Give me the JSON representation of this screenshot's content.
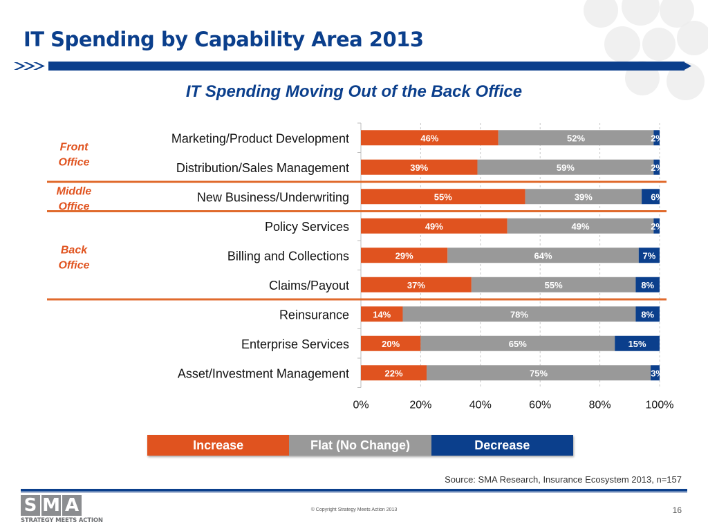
{
  "slide": {
    "title": "IT Spending by Capability Area 2013",
    "subtitle": "IT Spending Moving Out of the Back Office",
    "source": "Source: SMA Research, Insurance Ecosystem 2013, n=157",
    "copyright": "© Copyright Strategy Meets Action 2013",
    "page_number": "16",
    "logo": {
      "letters": [
        "S",
        "M",
        "A"
      ],
      "tagline": "STRATEGY MEETS ACTION"
    }
  },
  "colors": {
    "increase": "#e0531f",
    "flat": "#999999",
    "decrease": "#0b3f8c",
    "title": "#0b3f8c",
    "group_label": "#e0531f",
    "divider": "#e06a2c"
  },
  "groups": [
    {
      "label_line1": "Front",
      "label_line2": "Office",
      "rows": [
        0,
        1
      ]
    },
    {
      "label_line1": "Middle",
      "label_line2": "Office",
      "rows": [
        2
      ]
    },
    {
      "label_line1": "Back",
      "label_line2": "Office",
      "rows": [
        3,
        4,
        5
      ]
    }
  ],
  "legend": {
    "items": [
      {
        "label": "Increase",
        "color": "#e0531f"
      },
      {
        "label": "Flat (No Change)",
        "color": "#999999"
      },
      {
        "label": "Decrease",
        "color": "#0b3f8c"
      }
    ]
  },
  "chart_data": {
    "type": "bar",
    "orientation": "horizontal",
    "stacked": true,
    "title": "IT Spending Moving Out of the Back Office",
    "categories": [
      "Marketing/Product Development",
      "Distribution/Sales Management",
      "New Business/Underwriting",
      "Policy Services",
      "Billing and Collections",
      "Claims/Payout",
      "Reinsurance",
      "Enterprise Services",
      "Asset/Investment Management"
    ],
    "series": [
      {
        "name": "Increase",
        "values": [
          46,
          39,
          55,
          49,
          29,
          37,
          14,
          20,
          22
        ]
      },
      {
        "name": "Flat (No Change)",
        "values": [
          52,
          59,
          39,
          49,
          64,
          55,
          78,
          65,
          75
        ]
      },
      {
        "name": "Decrease",
        "values": [
          2,
          2,
          6,
          2,
          7,
          8,
          8,
          15,
          3
        ]
      }
    ],
    "data_labels": [
      [
        "46%",
        "52%",
        "2%"
      ],
      [
        "39%",
        "59%",
        "2%"
      ],
      [
        "55%",
        "39%",
        "6%"
      ],
      [
        "49%",
        "49%",
        "2%"
      ],
      [
        "29%",
        "64%",
        "7%"
      ],
      [
        "37%",
        "55%",
        "8%"
      ],
      [
        "14%",
        "78%",
        "8%"
      ],
      [
        "20%",
        "65%",
        "15%"
      ],
      [
        "22%",
        "75%",
        "3%"
      ]
    ],
    "xlim": [
      0,
      100
    ],
    "x_ticks": [
      "0%",
      "20%",
      "40%",
      "60%",
      "80%",
      "100%"
    ],
    "grid": true,
    "legend_position": "bottom"
  }
}
